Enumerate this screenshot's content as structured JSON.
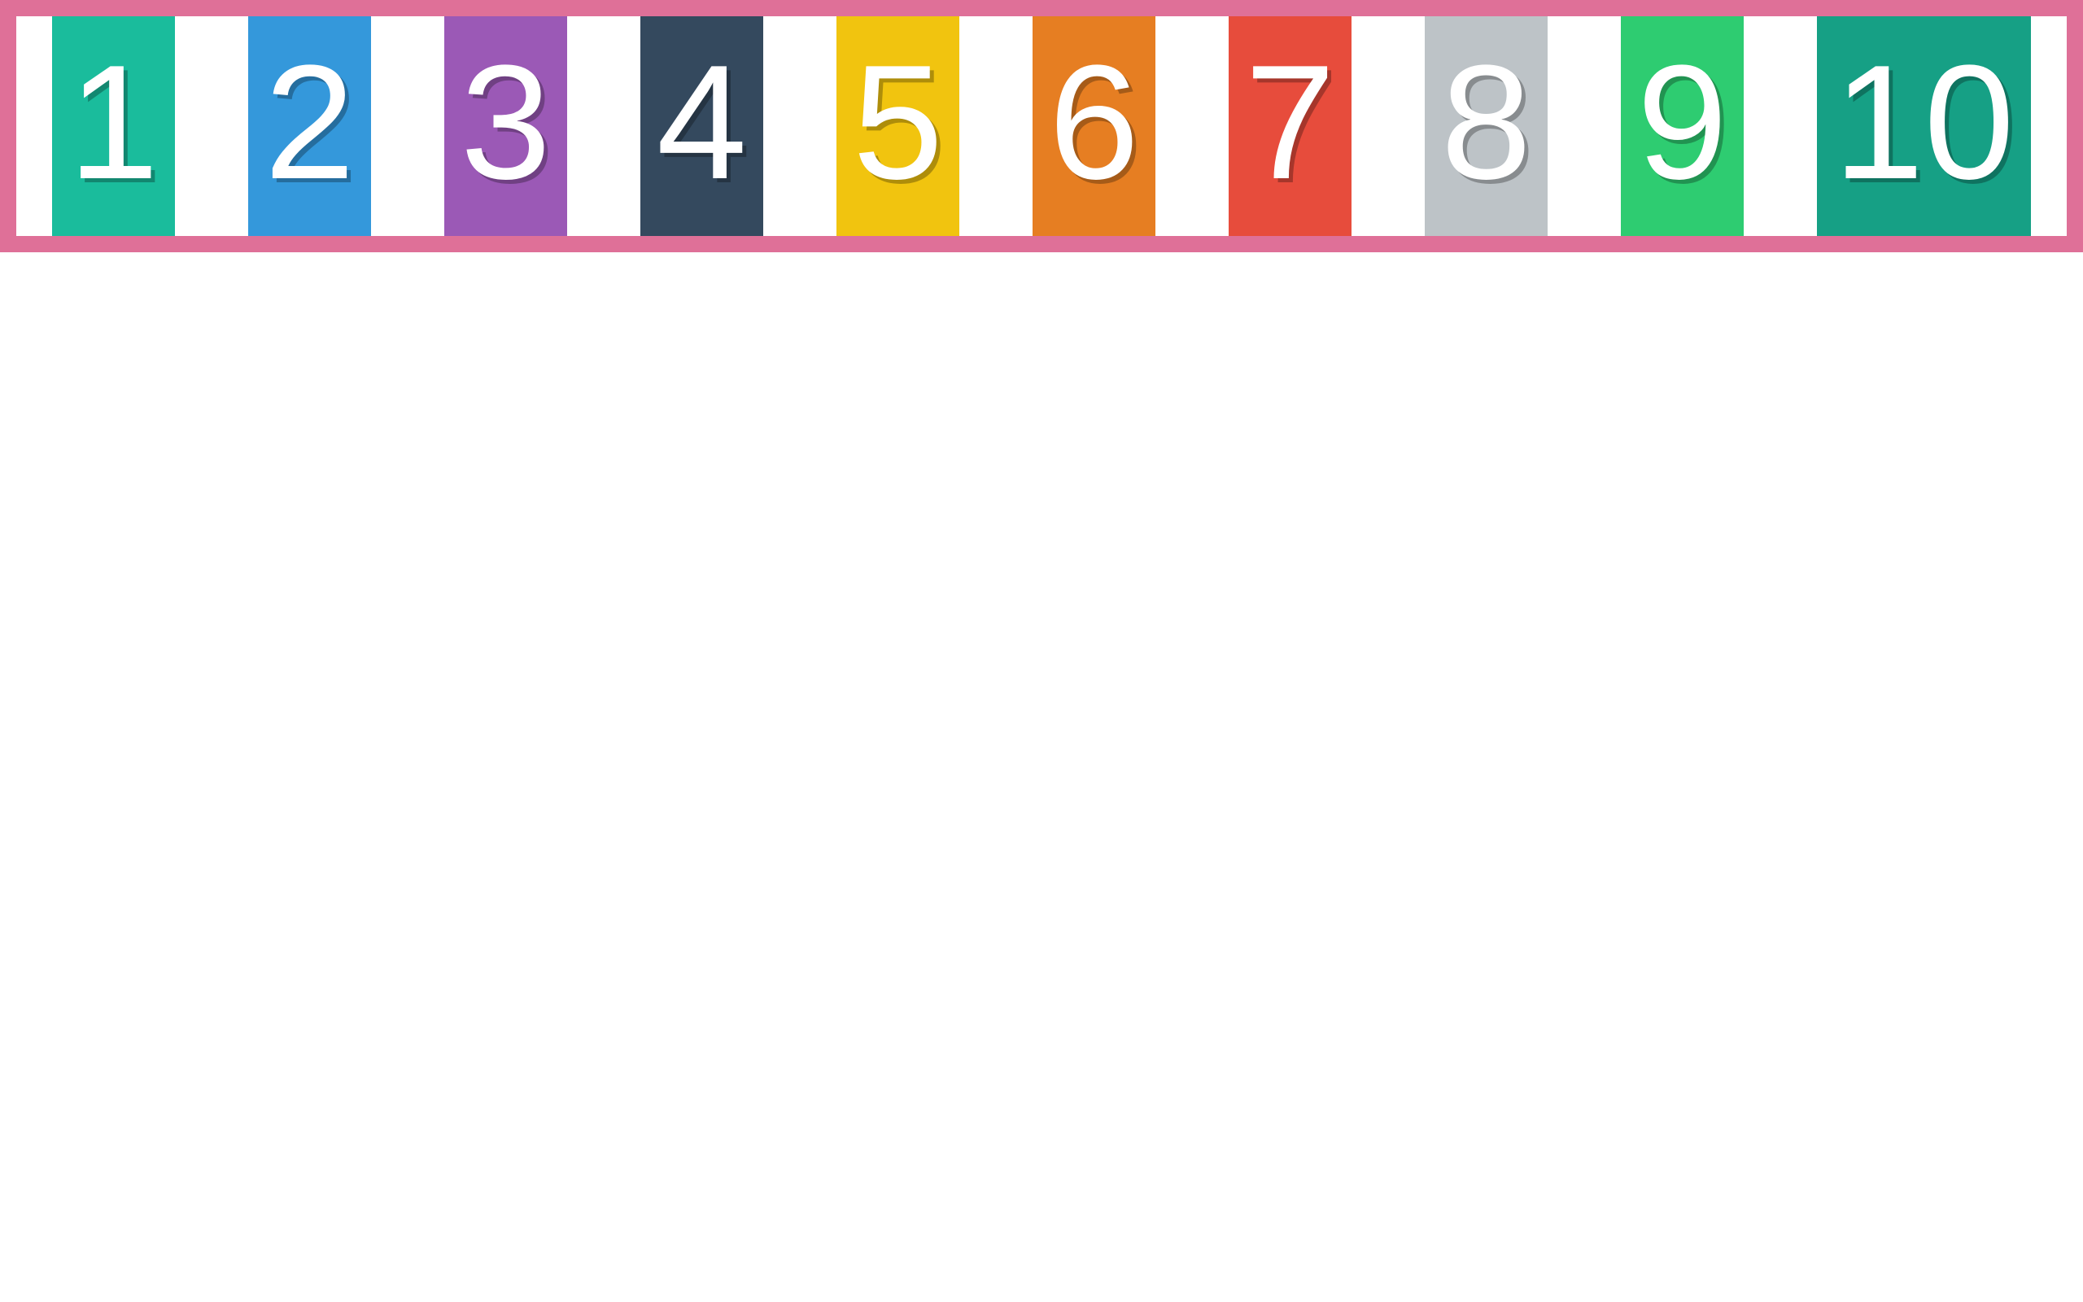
{
  "strip": {
    "border_color": "#df7098",
    "tiles": [
      {
        "label": "1",
        "color": "#1abc9c"
      },
      {
        "label": "2",
        "color": "#3498db"
      },
      {
        "label": "3",
        "color": "#9b59b6"
      },
      {
        "label": "4",
        "color": "#34495e"
      },
      {
        "label": "5",
        "color": "#f1c40f"
      },
      {
        "label": "6",
        "color": "#e67e22"
      },
      {
        "label": "7",
        "color": "#e74c3c"
      },
      {
        "label": "8",
        "color": "#bdc3c7"
      },
      {
        "label": "9",
        "color": "#2ecc71"
      },
      {
        "label": "10",
        "color": "#16a085"
      }
    ]
  }
}
